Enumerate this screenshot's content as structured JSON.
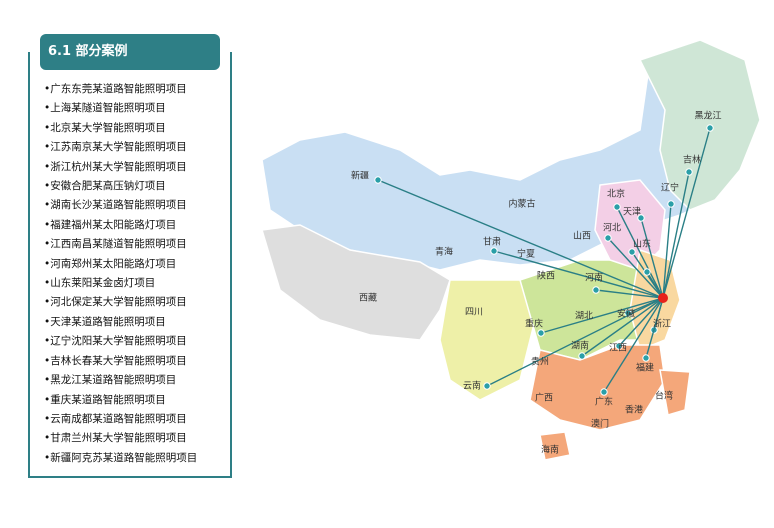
{
  "header": {
    "title": "6.1 部分案例"
  },
  "cases": [
    "广东东莞某道路智能照明项目",
    "上海某隧道智能照明项目",
    "北京某大学智能照明项目",
    "江苏南京某大学智能照明项目",
    "浙江杭州某大学智能照明项目",
    "安徽合肥某高压钠灯项目",
    "湖南长沙某道路智能照明项目",
    "福建福州某太阳能路灯项目",
    "江西南昌某隧道智能照明项目",
    "河南郑州某太阳能路灯项目",
    "山东莱阳某金卤灯项目",
    "河北保定某大学智能照明项目",
    "天津某道路智能照明项目",
    "辽宁沈阳某大学智能照明项目",
    "吉林长春某大学智能照明项目",
    "黑龙江某道路智能照明项目",
    "重庆某道路智能照明项目",
    "云南成都某道路智能照明项目",
    "甘肃兰州某大学智能照明项目",
    "新疆阿克苏某道路智能照明项目"
  ],
  "map": {
    "labels": [
      "新疆",
      "内蒙古",
      "黑龙江",
      "吉林",
      "辽宁",
      "北京",
      "天津",
      "河北",
      "山西",
      "山东",
      "青海",
      "甘肃",
      "宁夏",
      "陕西",
      "河南",
      "西藏",
      "四川",
      "重庆",
      "湖北",
      "安徽",
      "浙江",
      "湖南",
      "江西",
      "贵州",
      "福建",
      "云南",
      "广西",
      "广东",
      "台湾",
      "香港",
      "澳门",
      "海南"
    ]
  }
}
